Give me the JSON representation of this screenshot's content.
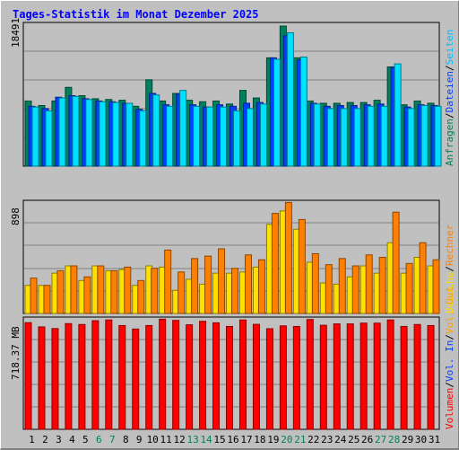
{
  "chart_data": {
    "type": "bar",
    "title": "Tages-Statistik im Monat Dezember 2025",
    "x": [
      "1",
      "2",
      "3",
      "4",
      "5",
      "6",
      "7",
      "8",
      "9",
      "10",
      "11",
      "12",
      "13",
      "14",
      "15",
      "16",
      "17",
      "18",
      "19",
      "20",
      "21",
      "22",
      "23",
      "24",
      "25",
      "26",
      "27",
      "28",
      "29",
      "30",
      "31"
    ],
    "weekend_days": [
      6,
      7,
      13,
      14,
      20,
      21,
      27,
      28
    ],
    "panels": [
      {
        "name": "top",
        "ymax_label": "18491",
        "ymax": 18491,
        "right_labels": [
          {
            "text": "Anfragen",
            "color": "#00805C"
          },
          {
            "text": "Dateien",
            "color": "#0040FF"
          },
          {
            "text": "Seiten",
            "color": "#00C0FF"
          }
        ],
        "series": [
          {
            "name": "Anfragen",
            "color": "#00805C",
            "values": [
              8600,
              8000,
              8600,
              10400,
              9300,
              8900,
              8800,
              8700,
              7900,
              11400,
              8600,
              9600,
              8700,
              8500,
              8600,
              8200,
              10000,
              9000,
              14300,
              18490,
              14300,
              8600,
              8300,
              8300,
              8400,
              8400,
              8700,
              13100,
              8100,
              8600,
              8300
            ]
          },
          {
            "name": "Dateien",
            "color": "#0040FF",
            "values": [
              7900,
              7600,
              9100,
              9300,
              8900,
              8600,
              8500,
              8300,
              7500,
              9600,
              8100,
              9500,
              8100,
              7800,
              8100,
              7900,
              8300,
              8400,
              14300,
              17200,
              14000,
              8300,
              7900,
              8000,
              8000,
              8100,
              8200,
              13000,
              7800,
              8100,
              8000
            ]
          },
          {
            "name": "Seiten",
            "color": "#00E0FF",
            "values": [
              7800,
              7300,
              9000,
              9200,
              8800,
              8500,
              8400,
              8300,
              7300,
              9400,
              7900,
              10000,
              7900,
              7800,
              7800,
              7300,
              7600,
              8200,
              14100,
              17600,
              14400,
              8200,
              7600,
              7600,
              7600,
              7900,
              7900,
              13500,
              7600,
              8000,
              7900
            ]
          }
        ]
      },
      {
        "name": "middle",
        "ymax_label": "898",
        "ymax": 898,
        "right_labels": [
          {
            "text": "Besuche",
            "color": "#FFD800"
          },
          {
            "text": "Rechner",
            "color": "#FF8000"
          }
        ],
        "series": [
          {
            "name": "Besuche",
            "color": "#FFE000",
            "values": [
              230,
              230,
              330,
              390,
              270,
              390,
              350,
              360,
              230,
              390,
              380,
              190,
              280,
              240,
              330,
              330,
              340,
              380,
              730,
              840,
              690,
              420,
              250,
              240,
              300,
              390,
              330,
              580,
              330,
              460,
              390
            ]
          },
          {
            "name": "Rechner",
            "color": "#FF8000",
            "values": [
              290,
              230,
              350,
              390,
              300,
              390,
              350,
              380,
              270,
              370,
              520,
              340,
              450,
              470,
              530,
              370,
              480,
              440,
              820,
              910,
              770,
              490,
              400,
              450,
              390,
              480,
              460,
              830,
              410,
              580,
              440
            ]
          }
        ]
      },
      {
        "name": "bottom",
        "ymax_label": "718.37 MB",
        "ymax": 718.37,
        "right_labels": [
          {
            "text": "Volumen",
            "color": "#FF0000"
          },
          {
            "text": "Vol. In",
            "color": "#0040FF"
          },
          {
            "text": "Vol. Out",
            "color": "#FFA000"
          }
        ],
        "series": [
          {
            "name": "Volumen",
            "color": "#FF0000",
            "values": [
              705,
              677,
              666,
              699,
              693,
              718,
              723,
              686,
              663,
              686,
              728,
              720,
              691,
              714,
              704,
              680,
              723,
              694,
              665,
              684,
              680,
              726,
              688,
              697,
              697,
              702,
              702,
              723,
              680,
              693,
              686
            ]
          }
        ]
      }
    ]
  }
}
